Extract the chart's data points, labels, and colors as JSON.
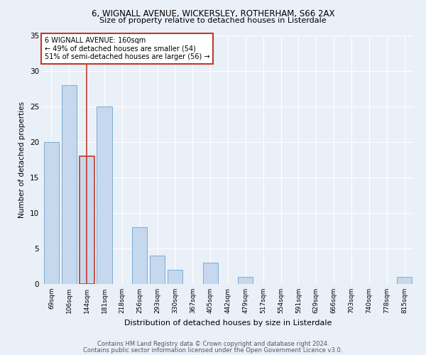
{
  "title1": "6, WIGNALL AVENUE, WICKERSLEY, ROTHERHAM, S66 2AX",
  "title2": "Size of property relative to detached houses in Listerdale",
  "xlabel": "Distribution of detached houses by size in Listerdale",
  "ylabel": "Number of detached properties",
  "footer1": "Contains HM Land Registry data © Crown copyright and database right 2024.",
  "footer2": "Contains public sector information licensed under the Open Government Licence v3.0.",
  "annotation_line1": "6 WIGNALL AVENUE: 160sqm",
  "annotation_line2": "← 49% of detached houses are smaller (54)",
  "annotation_line3": "51% of semi-detached houses are larger (56) →",
  "categories": [
    "69sqm",
    "106sqm",
    "144sqm",
    "181sqm",
    "218sqm",
    "256sqm",
    "293sqm",
    "330sqm",
    "367sqm",
    "405sqm",
    "442sqm",
    "479sqm",
    "517sqm",
    "554sqm",
    "591sqm",
    "629sqm",
    "666sqm",
    "703sqm",
    "740sqm",
    "778sqm",
    "815sqm"
  ],
  "values": [
    20,
    28,
    18,
    25,
    0,
    8,
    4,
    2,
    0,
    3,
    0,
    1,
    0,
    0,
    0,
    0,
    0,
    0,
    0,
    0,
    1
  ],
  "bar_color": "#c5d8ed",
  "bar_edge_color": "#7aadd4",
  "highlight_bar_index": 2,
  "highlight_color": "#c0392b",
  "ylim": [
    0,
    35
  ],
  "yticks": [
    0,
    5,
    10,
    15,
    20,
    25,
    30,
    35
  ],
  "bg_color": "#eaf0f8",
  "plot_bg_color": "#eaf0f8"
}
